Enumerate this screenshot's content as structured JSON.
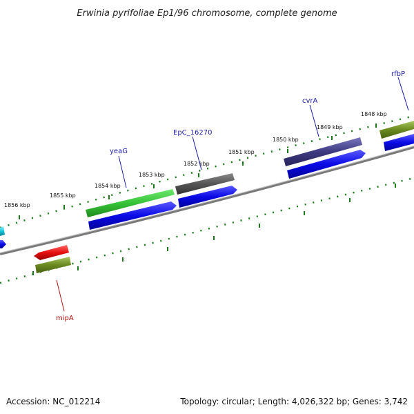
{
  "title": "Erwinia pyrifoliae Ep1/96 chromosome, complete genome",
  "footer": {
    "accession": "Accession: NC_012214",
    "topology": "Topology: circular; Length: 4,026,322 bp; Genes: 3,742"
  },
  "colors": {
    "backbone": "#7a7a7a",
    "tick": "#1a7a1a",
    "label_forward": "#1a1aa8",
    "label_reverse": "#b01010",
    "green": "#3cc83c",
    "darkgray": "#5a5a5a",
    "slate": "#3e3a80",
    "olive": "#6a8a20",
    "blue": "#0a0ae6",
    "red": "#e61010",
    "cyan": "#19c8d8"
  },
  "tick_labels": [
    "1856 kbp",
    "1855 kbp",
    "1854 kbp",
    "1853 kbp",
    "1852 kbp",
    "1851 kbp",
    "1850 kbp",
    "1849 kbp",
    "1848 kbp"
  ],
  "gene_labels": [
    "yeaG",
    "EpC_16270",
    "cvrA",
    "rfbP",
    "mipA"
  ]
}
